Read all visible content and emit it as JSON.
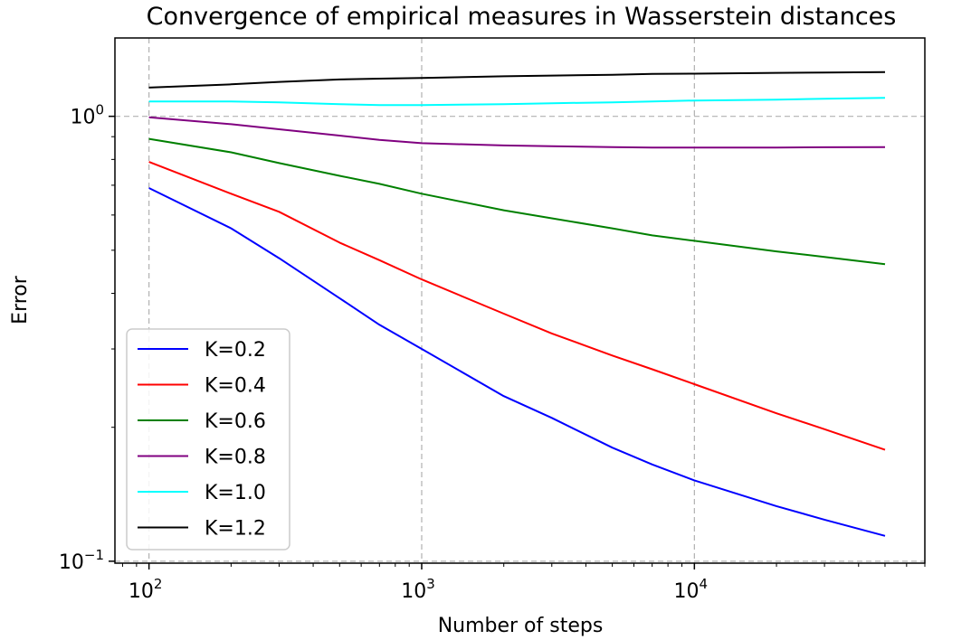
{
  "chart_data": {
    "type": "line",
    "title": "Convergence of empirical measures in Wasserstein distances",
    "xlabel": "Number of steps",
    "ylabel": "Error",
    "xscale": "log",
    "yscale": "log",
    "xlim": [
      75,
      70000
    ],
    "ylim": [
      0.099,
      1.5
    ],
    "grid": true,
    "legend_position": "lower-left",
    "x_ticks": [
      {
        "base": "10",
        "exp": "2",
        "value": 100
      },
      {
        "base": "10",
        "exp": "3",
        "value": 1000
      },
      {
        "base": "10",
        "exp": "4",
        "value": 10000
      }
    ],
    "y_ticks": [
      {
        "base": "10",
        "exp": "0",
        "value": 1
      },
      {
        "base": "10",
        "exp": "−1",
        "value": 0.1
      }
    ],
    "x": [
      100,
      200,
      300,
      500,
      700,
      1000,
      2000,
      3000,
      5000,
      7000,
      10000,
      20000,
      30000,
      50000
    ],
    "series": [
      {
        "name": "K=0.2",
        "color": "#0000ff",
        "values": [
          0.69,
          0.56,
          0.48,
          0.39,
          0.34,
          0.3,
          0.235,
          0.21,
          0.18,
          0.165,
          0.152,
          0.133,
          0.124,
          0.114
        ]
      },
      {
        "name": "K=0.4",
        "color": "#ff0000",
        "values": [
          0.79,
          0.67,
          0.61,
          0.52,
          0.475,
          0.43,
          0.36,
          0.325,
          0.29,
          0.27,
          0.25,
          0.215,
          0.198,
          0.178
        ]
      },
      {
        "name": "K=0.6",
        "color": "#008000",
        "values": [
          0.89,
          0.83,
          0.785,
          0.735,
          0.705,
          0.67,
          0.615,
          0.59,
          0.56,
          0.54,
          0.525,
          0.497,
          0.483,
          0.465
        ]
      },
      {
        "name": "K=0.8",
        "color": "#800080",
        "values": [
          0.995,
          0.96,
          0.935,
          0.905,
          0.885,
          0.87,
          0.86,
          0.857,
          0.853,
          0.851,
          0.851,
          0.851,
          0.852,
          0.853
        ]
      },
      {
        "name": "K=1.0",
        "color": "#00ffff",
        "values": [
          1.08,
          1.08,
          1.075,
          1.065,
          1.06,
          1.06,
          1.065,
          1.07,
          1.075,
          1.08,
          1.085,
          1.09,
          1.095,
          1.1
        ]
      },
      {
        "name": "K=1.2",
        "color": "#000000",
        "values": [
          1.16,
          1.18,
          1.195,
          1.21,
          1.215,
          1.22,
          1.23,
          1.235,
          1.24,
          1.245,
          1.247,
          1.252,
          1.254,
          1.257
        ]
      }
    ]
  }
}
